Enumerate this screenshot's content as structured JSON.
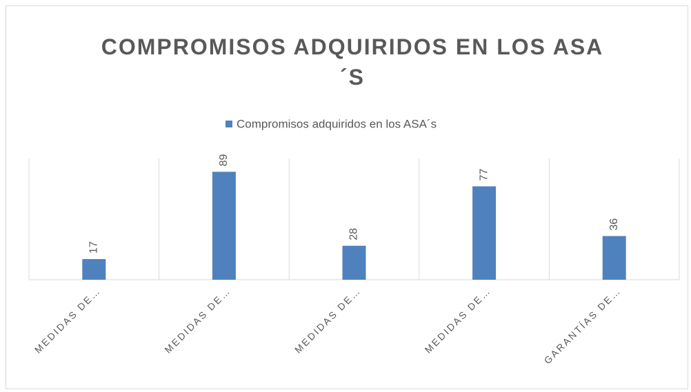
{
  "chart_data": {
    "type": "bar",
    "title": "COMPROMISOS ADQUIRIDOS EN LOS ASA´S",
    "categories": [
      "MEDIDAS DE…",
      "MEDIDAS DE…",
      "MEDIDAS DE…",
      "MEDIDAS DE…",
      "GARANTÍAS DE…"
    ],
    "series": [
      {
        "name": "Compromisos adquiridos en los ASA´s",
        "color": "#4f81bd",
        "values": [
          17,
          89,
          28,
          77,
          36
        ]
      }
    ],
    "ylim": [
      0,
      100
    ],
    "legend": "top"
  }
}
